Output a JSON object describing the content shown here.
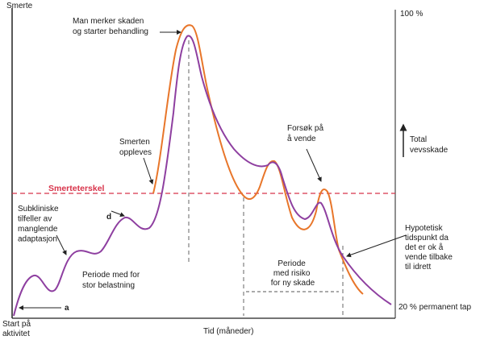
{
  "diagram": {
    "y_axis_label": "Smerte",
    "x_axis_label": "Tid (måneder)",
    "right_axis_top": "100 %",
    "right_axis_bottom": "20 % permanent tap",
    "total_damage_label": [
      "Total",
      "vevsskade"
    ],
    "threshold_label": "Smerteterskel",
    "annotations": {
      "notice_damage": [
        "Man merker skaden",
        "og starter behandling"
      ],
      "pain_felt": [
        "Smerten",
        "oppleves"
      ],
      "attempt_return": [
        "Forsøk på",
        "å vende"
      ],
      "subclinical": [
        "Subkliniske",
        "tilfeller av",
        "manglende",
        "adaptasjon"
      ],
      "d": "d",
      "a": "a",
      "heavy_load": [
        "Periode med for",
        "stor belastning"
      ],
      "risk_period": [
        "Periode",
        "med risiko",
        "for ny skade"
      ],
      "hypothetical": [
        "Hypotetisk",
        "tidspunkt da",
        "det er ok å",
        "vende tilbake",
        "til idrett"
      ],
      "start": [
        "Start på",
        "aktivitet"
      ]
    },
    "colors": {
      "pain_curve": "#e8762a",
      "damage_curve": "#8e3fa0",
      "threshold": "#d8334a",
      "axis": "#222222"
    }
  }
}
